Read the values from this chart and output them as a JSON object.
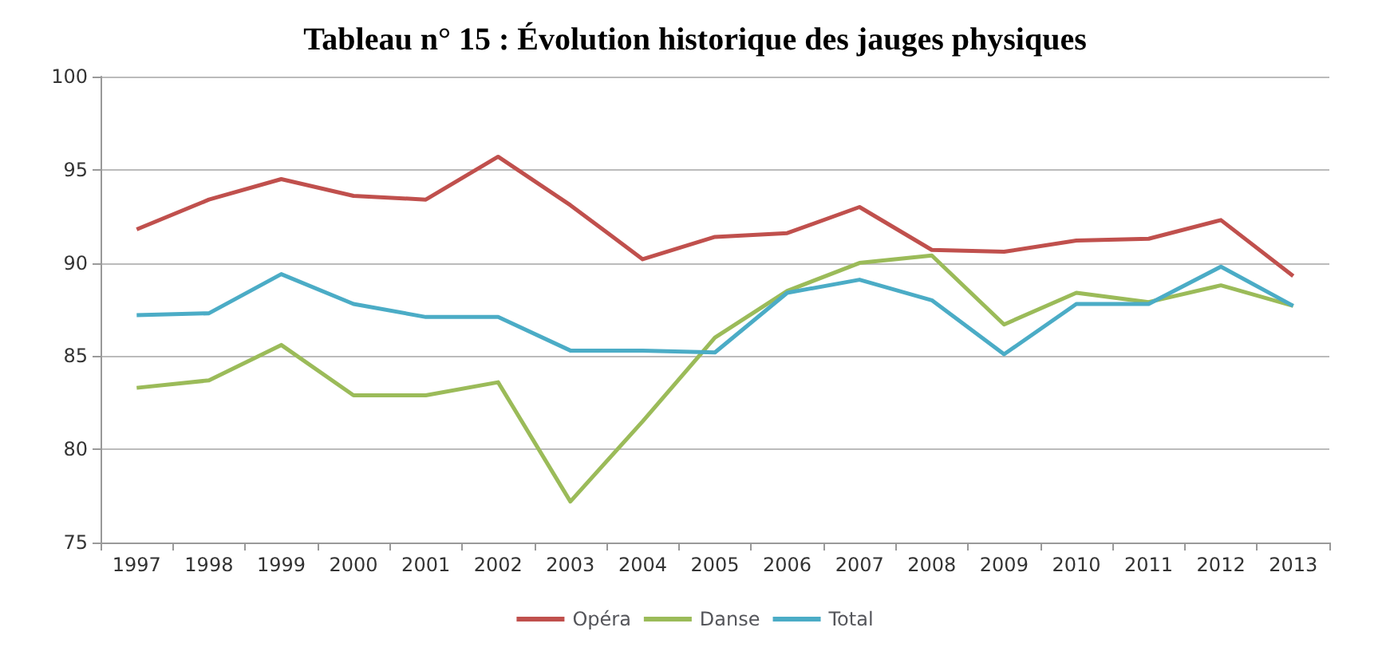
{
  "chart_data": {
    "type": "line",
    "title": "Tableau n° 15 : Évolution historique des jauges physiques",
    "categories": [
      "1997",
      "1998",
      "1999",
      "2000",
      "2001",
      "2002",
      "2003",
      "2004",
      "2005",
      "2006",
      "2007",
      "2008",
      "2009",
      "2010",
      "2011",
      "2012",
      "2013"
    ],
    "series": [
      {
        "name": "Opéra",
        "color": "#c0504d",
        "values": [
          91.8,
          93.4,
          94.5,
          93.6,
          93.4,
          95.7,
          93.1,
          90.2,
          91.4,
          91.6,
          93.0,
          90.7,
          90.6,
          91.2,
          91.3,
          92.3,
          89.3
        ]
      },
      {
        "name": "Danse",
        "color": "#9bbb59",
        "values": [
          83.3,
          83.7,
          85.6,
          82.9,
          82.9,
          83.6,
          77.2,
          81.5,
          86.0,
          88.5,
          90.0,
          90.4,
          86.7,
          88.4,
          87.9,
          88.8,
          87.7
        ]
      },
      {
        "name": "Total",
        "color": "#4bacc6",
        "values": [
          87.2,
          87.3,
          89.4,
          87.8,
          87.1,
          87.1,
          85.3,
          85.3,
          85.2,
          88.4,
          89.1,
          88.0,
          85.1,
          87.8,
          87.8,
          89.8,
          87.7
        ]
      }
    ],
    "ylim": [
      75,
      100
    ],
    "yticks": [
      75,
      80,
      85,
      90,
      95,
      100
    ],
    "grid": "y",
    "legend": "bottom",
    "marker": "none",
    "line_style": "solid"
  }
}
